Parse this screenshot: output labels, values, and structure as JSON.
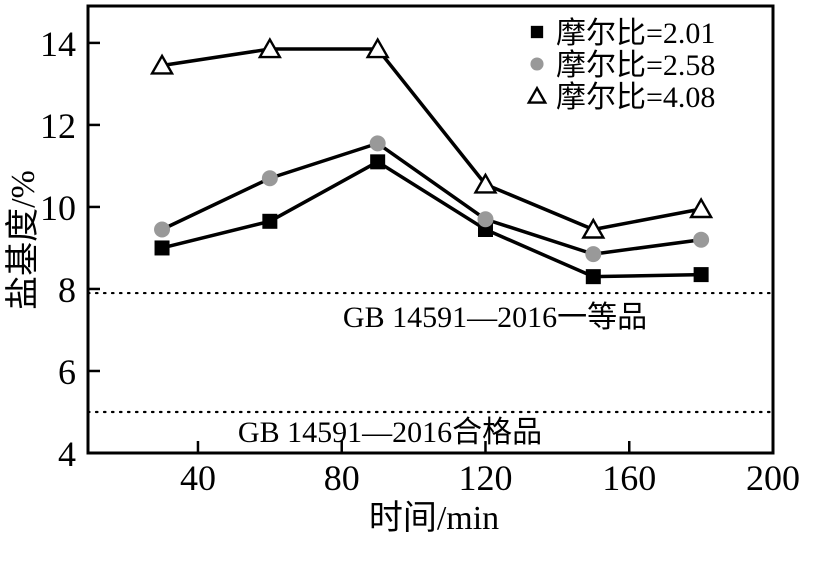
{
  "figure": {
    "background": "#ffffff",
    "line_color": "#000000",
    "gray_marker_color": "#999999"
  },
  "chart_data": {
    "type": "line",
    "title": "",
    "xlabel": "时间/min",
    "ylabel": "盐基度/%",
    "x": [
      30,
      60,
      90,
      120,
      150,
      180
    ],
    "series": [
      {
        "name": "摩尔比=2.01",
        "marker": "square",
        "marker_fill": "#000000",
        "line_color": "#000000",
        "values": [
          9.0,
          9.65,
          11.1,
          9.45,
          8.3,
          8.35
        ]
      },
      {
        "name": "摩尔比=2.58",
        "marker": "circle",
        "marker_fill": "#999999",
        "line_color": "#000000",
        "values": [
          9.45,
          10.7,
          11.55,
          9.7,
          8.85,
          9.2
        ]
      },
      {
        "name": "摩尔比=4.08",
        "marker": "triangle-open",
        "marker_fill": "#ffffff",
        "line_color": "#000000",
        "values": [
          13.45,
          13.85,
          13.85,
          10.55,
          9.45,
          9.95
        ]
      }
    ],
    "x_ticks": [
      40,
      80,
      120,
      160,
      200
    ],
    "y_ticks": [
      4,
      6,
      8,
      10,
      12,
      14
    ],
    "xlim": [
      9.4,
      200
    ],
    "ylim": [
      4,
      14.9
    ],
    "grid": false,
    "legend_position": "top-right-inside",
    "reference_lines": [
      {
        "value": 7.9,
        "style": "dotted",
        "label": "GB 14591—2016一等品"
      },
      {
        "value": 5.0,
        "style": "dotted",
        "label": "GB 14591—2016合格品"
      }
    ]
  }
}
